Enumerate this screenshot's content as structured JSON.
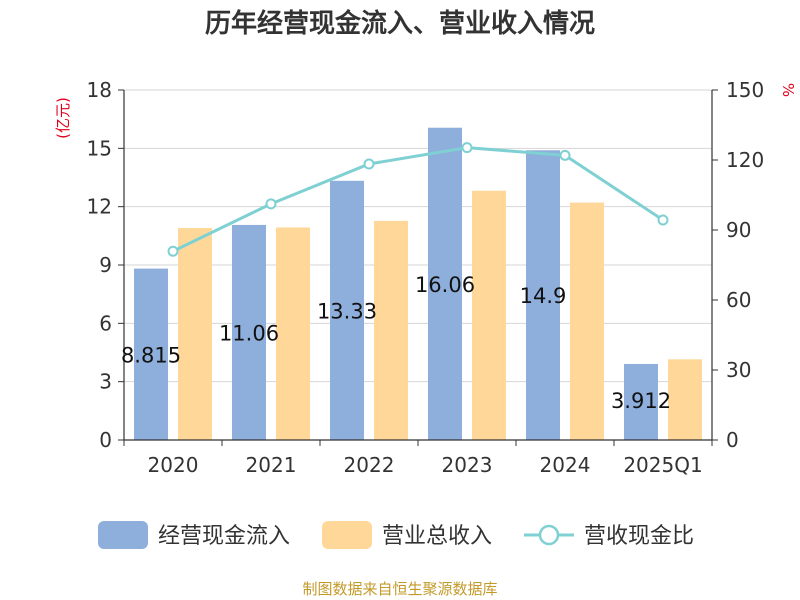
{
  "chart_data": {
    "type": "bar",
    "title": "历年经营现金流入、营业收入情况",
    "categories": [
      "2020",
      "2021",
      "2022",
      "2023",
      "2024",
      "2025Q1"
    ],
    "left_axis": {
      "unit": "(亿元)",
      "ylim": [
        0,
        18
      ],
      "ticks": [
        0,
        3,
        6,
        9,
        12,
        15,
        18
      ]
    },
    "right_axis": {
      "unit": "%",
      "ylim": [
        0,
        150
      ],
      "ticks": [
        0,
        30,
        60,
        90,
        120,
        150
      ]
    },
    "series": [
      {
        "name": "经营现金流入",
        "kind": "bar",
        "axis": "left",
        "color": "#8eaedb",
        "values": [
          8.815,
          11.06,
          13.33,
          16.06,
          14.9,
          3.912
        ],
        "labels": [
          "8.815",
          "11.06",
          "13.33",
          "16.06",
          "14.9",
          "3.912"
        ]
      },
      {
        "name": "营业总收入",
        "kind": "bar",
        "axis": "left",
        "color": "#ffd899",
        "values": [
          10.9,
          10.93,
          11.27,
          12.82,
          12.21,
          4.15
        ]
      },
      {
        "name": "营收现金比",
        "kind": "line",
        "axis": "right",
        "color": "#7fd0d3",
        "values": [
          80.9,
          101.2,
          118.3,
          125.3,
          122.0,
          94.3
        ]
      }
    ],
    "grid": true,
    "legend_position": "bottom"
  },
  "source": "制图数据来自恒生聚源数据库"
}
